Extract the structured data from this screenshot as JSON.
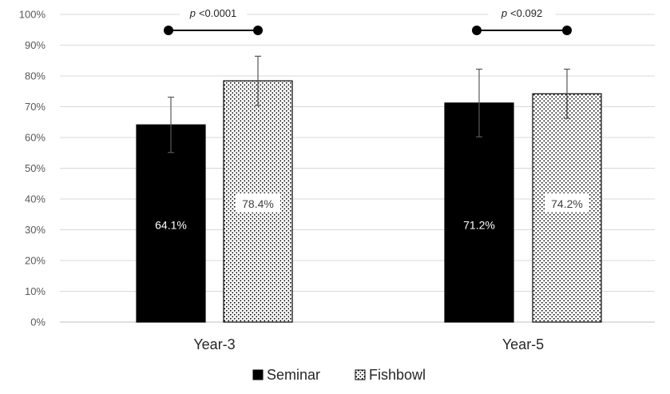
{
  "chart_data": {
    "type": "bar",
    "categories": [
      "Year-3",
      "Year-5"
    ],
    "series": [
      {
        "name": "Seminar",
        "values": [
          64.1,
          71.2
        ],
        "error": [
          9,
          11
        ],
        "labels": [
          "64.1%",
          "71.2%"
        ],
        "color": "#000000",
        "pattern": "solid"
      },
      {
        "name": "Fishbowl",
        "values": [
          78.4,
          74.2
        ],
        "error": [
          8,
          8
        ],
        "labels": [
          "78.4%",
          "74.2%"
        ],
        "color": "#000000",
        "pattern": "dotted"
      }
    ],
    "ylim": [
      0,
      100
    ],
    "yticks": [
      "0%",
      "10%",
      "20%",
      "30%",
      "40%",
      "50%",
      "60%",
      "70%",
      "80%",
      "90%",
      "100%"
    ],
    "grid": true,
    "legend_position": "bottom",
    "annotations": [
      {
        "category": "Year-3",
        "p_symbol": "p",
        "text": "<0.0001"
      },
      {
        "category": "Year-5",
        "p_symbol": "p",
        "text": "<0.092"
      }
    ]
  }
}
